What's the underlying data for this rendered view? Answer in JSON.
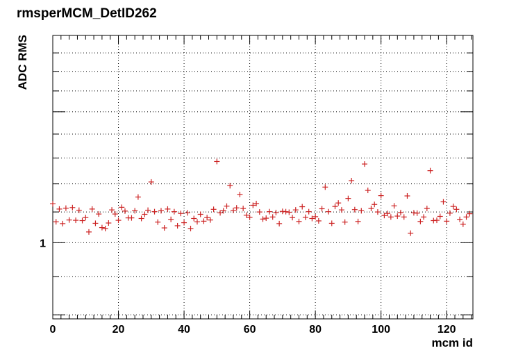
{
  "chart_data": {
    "type": "scatter",
    "title": "rmsperMCM_DetID262",
    "xlabel": "mcm id",
    "ylabel": "ADC RMS",
    "xlim": [
      0,
      128
    ],
    "ylim": [
      0.79,
      1.9
    ],
    "y_scale": "log",
    "grid": true,
    "x_ticks": [
      0,
      20,
      40,
      60,
      80,
      100,
      120
    ],
    "y_tick_labels": [
      {
        "value": 1,
        "label": "1"
      }
    ],
    "marker": "plus",
    "colors": {
      "marker": "#cc2222",
      "axis": "#000000",
      "grid": "#000000"
    },
    "series": [
      {
        "x": [
          0,
          1,
          2,
          3,
          4,
          5,
          6,
          7,
          8,
          9,
          10,
          11,
          12,
          13,
          14,
          15,
          16,
          17,
          18,
          19,
          20,
          21,
          22,
          23,
          24,
          25,
          26,
          27,
          28,
          29,
          30,
          31,
          32,
          33,
          34,
          35,
          36,
          37,
          38,
          39,
          40,
          41,
          42,
          43,
          44,
          45,
          46,
          47,
          48,
          49,
          50,
          51,
          52,
          53,
          54,
          55,
          56,
          57,
          58,
          59,
          60,
          61,
          62,
          63,
          64,
          65,
          66,
          67,
          68,
          69,
          70,
          71,
          72,
          73,
          74,
          75,
          76,
          77,
          78,
          79,
          80,
          81,
          82,
          83,
          84,
          85,
          86,
          87,
          88,
          89,
          90,
          91,
          92,
          93,
          94,
          95,
          96,
          97,
          98,
          99,
          100,
          101,
          102,
          103,
          104,
          105,
          106,
          107,
          108,
          109,
          110,
          111,
          112,
          113,
          114,
          115,
          116,
          117,
          118,
          119,
          120,
          121,
          122,
          123,
          124,
          125,
          126,
          127
        ],
        "y": [
          1.128,
          1.067,
          1.11,
          1.061,
          1.113,
          1.073,
          1.115,
          1.072,
          1.106,
          1.071,
          1.081,
          1.034,
          1.11,
          1.062,
          1.093,
          1.048,
          1.045,
          1.063,
          1.107,
          1.093,
          1.072,
          1.116,
          1.103,
          1.08,
          1.08,
          1.104,
          1.152,
          1.078,
          1.092,
          1.106,
          1.207,
          1.101,
          1.066,
          1.104,
          1.047,
          1.11,
          1.075,
          1.101,
          1.054,
          1.095,
          1.064,
          1.097,
          1.045,
          1.078,
          1.067,
          1.092,
          1.069,
          1.081,
          1.073,
          1.109,
          1.286,
          1.097,
          1.104,
          1.12,
          1.193,
          1.105,
          1.114,
          1.161,
          1.112,
          1.089,
          1.082,
          1.123,
          1.129,
          1.1,
          1.076,
          1.079,
          1.101,
          1.083,
          1.098,
          1.061,
          1.102,
          1.101,
          1.099,
          1.081,
          1.107,
          1.068,
          1.118,
          1.082,
          1.101,
          1.078,
          1.084,
          1.07,
          1.111,
          1.188,
          1.101,
          1.062,
          1.119,
          1.131,
          1.107,
          1.066,
          1.147,
          1.212,
          1.108,
          1.068,
          1.104,
          1.276,
          1.176,
          1.112,
          1.126,
          1.1,
          1.157,
          1.088,
          1.095,
          1.083,
          1.121,
          1.086,
          1.098,
          1.083,
          1.156,
          1.03,
          1.097,
          1.096,
          1.068,
          1.083,
          1.112,
          1.25,
          1.071,
          1.072,
          1.085,
          1.135,
          1.069,
          1.096,
          1.119,
          1.109,
          1.075,
          1.059,
          1.083,
          1.094
        ]
      }
    ]
  }
}
